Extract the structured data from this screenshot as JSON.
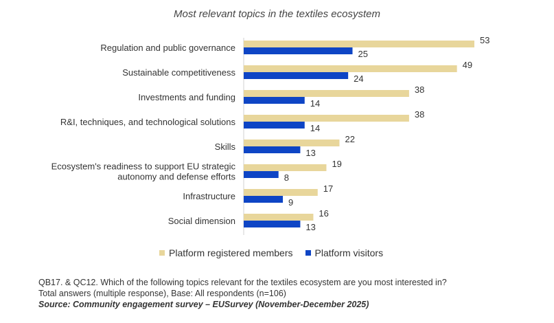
{
  "chart_data": {
    "type": "bar",
    "orientation": "horizontal",
    "title": "Most relevant topics in the textiles ecosystem",
    "categories": [
      "Regulation and public governance",
      "Sustainable competitiveness",
      "Investments and funding",
      "R&I, techniques, and technological solutions",
      "Skills",
      "Ecosystem's readiness to support EU strategic autonomy and defense efforts",
      "Infrastructure",
      "Social dimension"
    ],
    "series": [
      {
        "name": "Platform registered members",
        "color": "#E8D69B",
        "values": [
          53,
          49,
          38,
          38,
          22,
          19,
          17,
          16
        ]
      },
      {
        "name": "Platform visitors",
        "color": "#0E45C5",
        "values": [
          25,
          24,
          14,
          14,
          13,
          8,
          9,
          13
        ]
      }
    ],
    "xlim": [
      0,
      53
    ],
    "grid": false,
    "legend": "bottom",
    "data_labels": true
  },
  "notes": {
    "question": "QB17. & QC12. Which of the following topics relevant for the textiles ecosystem are you most interested in?",
    "base": "Total answers (multiple response), Base: All respondents (n=106)",
    "source": "Source: Community engagement survey – EUSurvey (November-December 2025)"
  }
}
